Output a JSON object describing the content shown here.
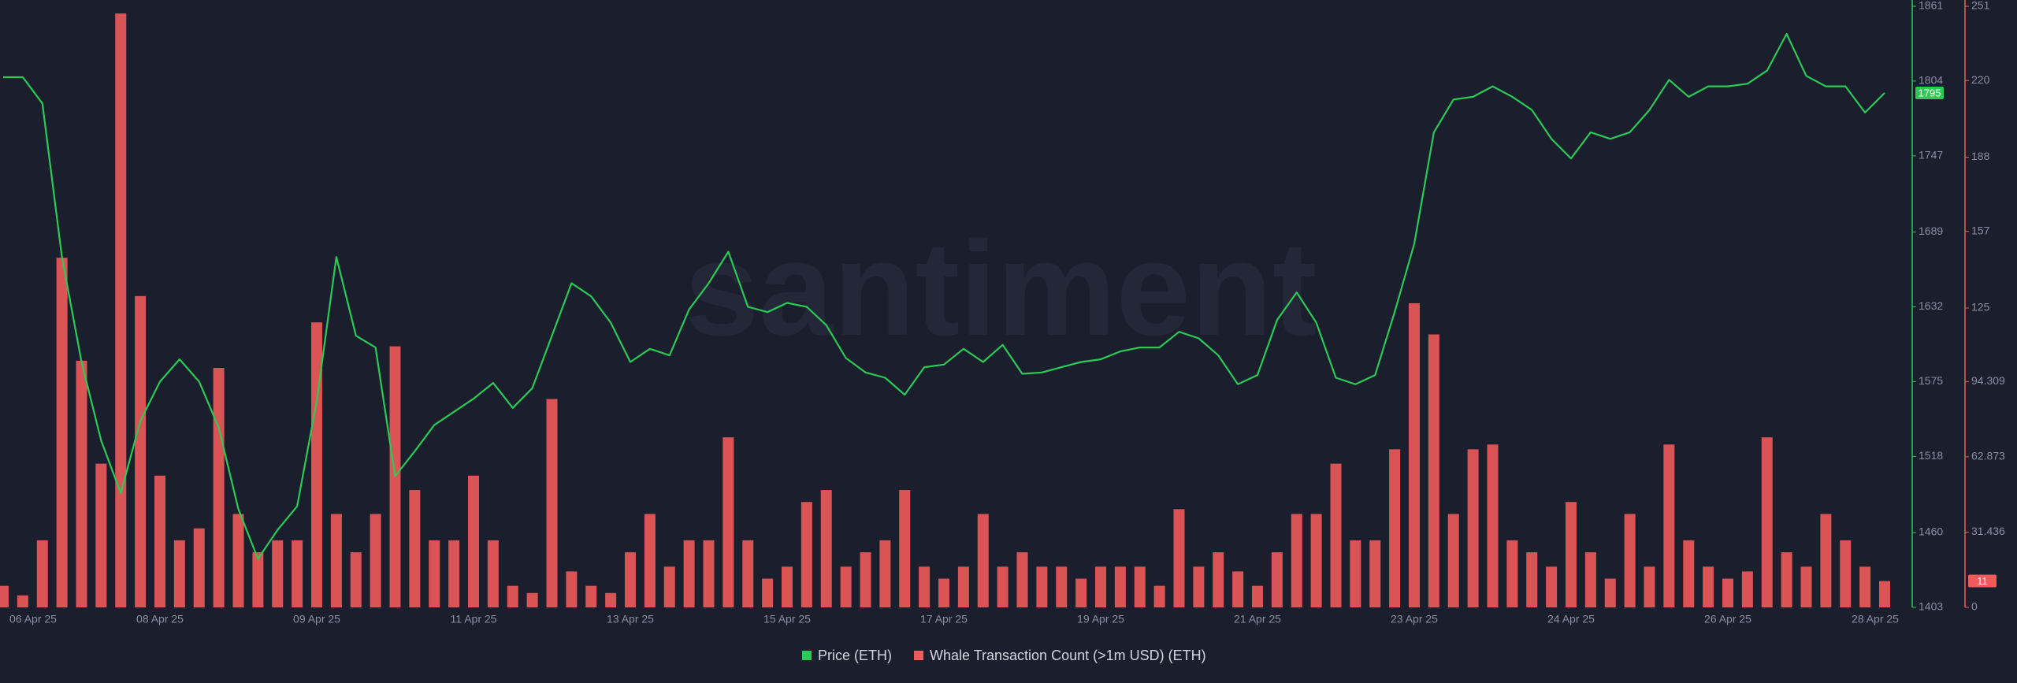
{
  "chart_data": {
    "type": "combo",
    "watermark": "santiment",
    "categories": [
      "06 Apr 25",
      null,
      null,
      null,
      null,
      null,
      null,
      null,
      "08 Apr 25",
      null,
      null,
      null,
      null,
      null,
      null,
      null,
      "09 Apr 25",
      null,
      null,
      null,
      null,
      null,
      null,
      null,
      "11 Apr 25",
      null,
      null,
      null,
      null,
      null,
      null,
      null,
      "13 Apr 25",
      null,
      null,
      null,
      null,
      null,
      null,
      null,
      "15 Apr 25",
      null,
      null,
      null,
      null,
      null,
      null,
      null,
      "17 Apr 25",
      null,
      null,
      null,
      null,
      null,
      null,
      null,
      "19 Apr 25",
      null,
      null,
      null,
      null,
      null,
      null,
      null,
      "21 Apr 25",
      null,
      null,
      null,
      null,
      null,
      null,
      null,
      "23 Apr 25",
      null,
      null,
      null,
      null,
      null,
      null,
      null,
      "24 Apr 25",
      null,
      null,
      null,
      null,
      null,
      null,
      null,
      "26 Apr 25",
      null,
      null,
      null,
      null,
      null,
      null,
      null,
      "28 Apr 25"
    ],
    "ylim": [
      1403,
      1861
    ],
    "yticks": [
      1403,
      1460,
      1518,
      1575,
      1632,
      1689,
      1747,
      1804,
      1861
    ],
    "y2lim": [
      0,
      251
    ],
    "y2ticks": [
      0,
      31.436,
      62.873,
      94.309,
      125,
      157,
      188,
      220,
      251
    ],
    "grid": false,
    "legend": "bottom",
    "series": [
      {
        "name": "Price (ETH)",
        "type": "line",
        "axis": "y",
        "color": "#2bc955",
        "values": [
          1807,
          1807,
          1787,
          1670,
          1590,
          1530,
          1490,
          1545,
          1575,
          1592,
          1575,
          1540,
          1478,
          1440,
          1462,
          1480,
          1560,
          1670,
          1610,
          1601,
          1503,
          1522,
          1542,
          1552,
          1562,
          1574,
          1555,
          1570,
          1610,
          1650,
          1640,
          1620,
          1590,
          1600,
          1595,
          1630,
          1650,
          1674,
          1632,
          1628,
          1635,
          1632,
          1618,
          1593,
          1582,
          1578,
          1565,
          1586,
          1588,
          1600,
          1590,
          1603,
          1581,
          1582,
          1586,
          1590,
          1592,
          1598,
          1601,
          1601,
          1613,
          1608,
          1595,
          1573,
          1580,
          1622,
          1643,
          1620,
          1578,
          1573,
          1580,
          1628,
          1680,
          1765,
          1790,
          1792,
          1800,
          1792,
          1782,
          1760,
          1745,
          1765,
          1760,
          1765,
          1782,
          1805,
          1792,
          1800,
          1800,
          1802,
          1812,
          1840,
          1808,
          1800,
          1800,
          1780,
          1795
        ]
      },
      {
        "name": "Whale Transaction Count (>1m USD) (ETH)",
        "type": "bar",
        "axis": "y2",
        "color": "#ef5a5a",
        "values": [
          9,
          5,
          28,
          146,
          103,
          60,
          248,
          130,
          55,
          28,
          33,
          100,
          39,
          23,
          28,
          28,
          119,
          39,
          23,
          39,
          109,
          49,
          28,
          28,
          55,
          28,
          9,
          6,
          87,
          15,
          9,
          6,
          23,
          39,
          17,
          28,
          28,
          71,
          28,
          12,
          17,
          44,
          49,
          17,
          23,
          28,
          49,
          17,
          12,
          17,
          39,
          17,
          23,
          17,
          17,
          12,
          17,
          17,
          17,
          9,
          41,
          17,
          23,
          15,
          9,
          23,
          39,
          39,
          60,
          28,
          28,
          66,
          127,
          114,
          39,
          66,
          68,
          28,
          23,
          17,
          44,
          23,
          12,
          39,
          17,
          68,
          28,
          17,
          12,
          15,
          71,
          23,
          17,
          39,
          28,
          17,
          11
        ]
      }
    ]
  }
}
